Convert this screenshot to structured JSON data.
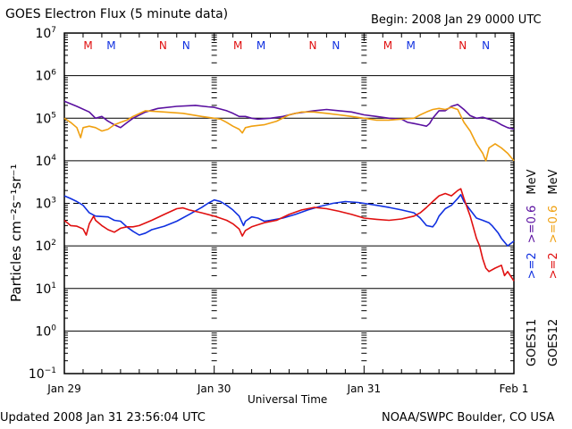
{
  "header": {
    "title": "GOES Electron Flux (5 minute data)",
    "begin": "Begin: 2008 Jan 29 0000 UTC"
  },
  "footer": {
    "updated": "Updated 2008 Jan 31 23:56:04 UTC",
    "credit": "NOAA/SWPC Boulder, CO USA"
  },
  "side_labels": {
    "goes11": "GOES11",
    "goes12": "GOES12",
    "g11_e2": ">=2",
    "g11_e06": ">=0.6",
    "g11_unit": "MeV",
    "g12_e2": ">=2",
    "g12_e06": ">=0.6",
    "g12_unit": "MeV"
  },
  "colors": {
    "g11_2mev": "#1030e0",
    "g11_06mev": "#5a10a0",
    "g12_2mev": "#e01010",
    "g12_06mev": "#f0a010",
    "m_n_red": "#e01010",
    "m_n_blue": "#1030e0"
  },
  "chart_data": {
    "type": "line",
    "title": "GOES Electron Flux (5 minute data)",
    "xlabel": "Universal Time",
    "ylabel": "Particles cm⁻²s⁻¹sr⁻¹",
    "yscale": "log",
    "ylim": [
      0.1,
      10000000
    ],
    "xlim_hours": [
      0,
      72
    ],
    "x_ticks": [
      {
        "hour": 0,
        "label": "Jan 29"
      },
      {
        "hour": 24,
        "label": "Jan 30"
      },
      {
        "hour": 48,
        "label": "Jan 31"
      },
      {
        "hour": 72,
        "label": "Feb 1"
      }
    ],
    "y_ticks": [
      {
        "exp": 7,
        "label": "10",
        "sup": "7"
      },
      {
        "exp": 6,
        "label": "10",
        "sup": "6"
      },
      {
        "exp": 5,
        "label": "10",
        "sup": "5"
      },
      {
        "exp": 4,
        "label": "10",
        "sup": "4"
      },
      {
        "exp": 3,
        "label": "10",
        "sup": "3"
      },
      {
        "exp": 2,
        "label": "10",
        "sup": "2"
      },
      {
        "exp": 1,
        "label": "10",
        "sup": "1"
      },
      {
        "exp": 0,
        "label": "10",
        "sup": "0"
      },
      {
        "exp": -1,
        "label": "10",
        "sup": "-1"
      }
    ],
    "threshold_line": {
      "value": 1000,
      "style": "dashed"
    },
    "solid_gridlines": [
      1000000,
      100000,
      10000,
      100,
      10,
      1
    ],
    "markers": [
      {
        "hour": 3.8,
        "label": "M",
        "color": "red"
      },
      {
        "hour": 7.5,
        "label": "M",
        "color": "blue"
      },
      {
        "hour": 15.8,
        "label": "N",
        "color": "red"
      },
      {
        "hour": 19.5,
        "label": "N",
        "color": "blue"
      },
      {
        "hour": 27.8,
        "label": "M",
        "color": "red"
      },
      {
        "hour": 31.5,
        "label": "M",
        "color": "blue"
      },
      {
        "hour": 39.8,
        "label": "N",
        "color": "red"
      },
      {
        "hour": 43.5,
        "label": "N",
        "color": "blue"
      },
      {
        "hour": 51.8,
        "label": "M",
        "color": "red"
      },
      {
        "hour": 55.5,
        "label": "M",
        "color": "blue"
      },
      {
        "hour": 63.8,
        "label": "N",
        "color": "red"
      },
      {
        "hour": 67.5,
        "label": "N",
        "color": "blue"
      }
    ],
    "series": [
      {
        "name": "GOES11 >=0.6 MeV",
        "color": "#5a10a0",
        "points": [
          [
            0,
            250000
          ],
          [
            2,
            190000
          ],
          [
            4,
            140000
          ],
          [
            5,
            100000
          ],
          [
            6,
            110000
          ],
          [
            7,
            85000
          ],
          [
            8,
            70000
          ],
          [
            9,
            60000
          ],
          [
            10,
            78000
          ],
          [
            11,
            100000
          ],
          [
            13,
            140000
          ],
          [
            15,
            170000
          ],
          [
            18,
            190000
          ],
          [
            21,
            200000
          ],
          [
            23,
            185000
          ],
          [
            24,
            180000
          ],
          [
            26,
            150000
          ],
          [
            27,
            130000
          ],
          [
            28,
            110000
          ],
          [
            29,
            110000
          ],
          [
            30,
            100000
          ],
          [
            31,
            95000
          ],
          [
            33,
            100000
          ],
          [
            35,
            110000
          ],
          [
            37,
            130000
          ],
          [
            40,
            150000
          ],
          [
            42,
            160000
          ],
          [
            44,
            150000
          ],
          [
            46,
            140000
          ],
          [
            48,
            120000
          ],
          [
            50,
            110000
          ],
          [
            52,
            100000
          ],
          [
            54,
            95000
          ],
          [
            55,
            80000
          ],
          [
            56,
            75000
          ],
          [
            57,
            70000
          ],
          [
            58,
            65000
          ],
          [
            58.5,
            75000
          ],
          [
            59,
            100000
          ],
          [
            60,
            150000
          ],
          [
            61,
            150000
          ],
          [
            62,
            190000
          ],
          [
            63,
            210000
          ],
          [
            64,
            160000
          ],
          [
            65,
            115000
          ],
          [
            66,
            100000
          ],
          [
            67,
            105000
          ],
          [
            68,
            95000
          ],
          [
            69,
            85000
          ],
          [
            70,
            70000
          ],
          [
            71,
            60000
          ],
          [
            72,
            55000
          ]
        ]
      },
      {
        "name": "GOES12 >=0.6 MeV",
        "color": "#f0a010",
        "points": [
          [
            0,
            100000
          ],
          [
            1,
            80000
          ],
          [
            2,
            60000
          ],
          [
            2.6,
            35000
          ],
          [
            3,
            60000
          ],
          [
            4,
            65000
          ],
          [
            5,
            60000
          ],
          [
            6,
            50000
          ],
          [
            7,
            55000
          ],
          [
            8,
            70000
          ],
          [
            9,
            80000
          ],
          [
            10,
            90000
          ],
          [
            11,
            110000
          ],
          [
            13,
            150000
          ],
          [
            16,
            140000
          ],
          [
            19,
            130000
          ],
          [
            22,
            110000
          ],
          [
            24,
            100000
          ],
          [
            25,
            95000
          ],
          [
            26,
            80000
          ],
          [
            27,
            65000
          ],
          [
            28,
            55000
          ],
          [
            28.5,
            45000
          ],
          [
            29,
            60000
          ],
          [
            30,
            65000
          ],
          [
            32,
            70000
          ],
          [
            34,
            85000
          ],
          [
            36,
            120000
          ],
          [
            38,
            140000
          ],
          [
            40,
            140000
          ],
          [
            42,
            130000
          ],
          [
            44,
            120000
          ],
          [
            46,
            110000
          ],
          [
            48,
            100000
          ],
          [
            50,
            90000
          ],
          [
            52,
            90000
          ],
          [
            54,
            95000
          ],
          [
            56,
            100000
          ],
          [
            57,
            120000
          ],
          [
            58,
            140000
          ],
          [
            59,
            160000
          ],
          [
            60,
            170000
          ],
          [
            61,
            160000
          ],
          [
            62,
            180000
          ],
          [
            63,
            160000
          ],
          [
            64,
            80000
          ],
          [
            65,
            50000
          ],
          [
            66,
            25000
          ],
          [
            67,
            15000
          ],
          [
            67.5,
            10000
          ],
          [
            68,
            20000
          ],
          [
            69,
            25000
          ],
          [
            70,
            20000
          ],
          [
            71,
            15000
          ],
          [
            72,
            10000
          ]
        ]
      },
      {
        "name": "GOES11 >=2 MeV",
        "color": "#1030e0",
        "points": [
          [
            0,
            1500
          ],
          [
            1,
            1300
          ],
          [
            2,
            1100
          ],
          [
            3,
            900
          ],
          [
            4,
            600
          ],
          [
            5,
            500
          ],
          [
            7,
            480
          ],
          [
            8,
            400
          ],
          [
            9,
            380
          ],
          [
            10,
            280
          ],
          [
            11,
            220
          ],
          [
            12,
            180
          ],
          [
            13,
            200
          ],
          [
            14,
            240
          ],
          [
            16,
            290
          ],
          [
            18,
            380
          ],
          [
            20,
            550
          ],
          [
            22,
            800
          ],
          [
            23,
            1000
          ],
          [
            24,
            1200
          ],
          [
            25,
            1100
          ],
          [
            26,
            900
          ],
          [
            27,
            700
          ],
          [
            28,
            500
          ],
          [
            28.7,
            300
          ],
          [
            29,
            380
          ],
          [
            30,
            480
          ],
          [
            31,
            450
          ],
          [
            32,
            380
          ],
          [
            33,
            400
          ],
          [
            35,
            450
          ],
          [
            37,
            550
          ],
          [
            39,
            700
          ],
          [
            41,
            850
          ],
          [
            43,
            1000
          ],
          [
            45,
            1100
          ],
          [
            47,
            1050
          ],
          [
            48,
            1000
          ],
          [
            50,
            900
          ],
          [
            52,
            800
          ],
          [
            54,
            700
          ],
          [
            56,
            600
          ],
          [
            57,
            450
          ],
          [
            58,
            300
          ],
          [
            59,
            280
          ],
          [
            59.5,
            350
          ],
          [
            60,
            500
          ],
          [
            61,
            750
          ],
          [
            62,
            900
          ],
          [
            63,
            1300
          ],
          [
            63.5,
            1600
          ],
          [
            64,
            1100
          ],
          [
            65,
            700
          ],
          [
            66,
            450
          ],
          [
            67,
            400
          ],
          [
            68,
            350
          ],
          [
            68.5,
            300
          ],
          [
            69.5,
            200
          ],
          [
            70,
            150
          ],
          [
            71,
            100
          ],
          [
            72,
            130
          ]
        ]
      },
      {
        "name": "GOES12 >=2 MeV",
        "color": "#e01010",
        "points": [
          [
            0,
            400
          ],
          [
            1,
            300
          ],
          [
            2,
            290
          ],
          [
            3,
            250
          ],
          [
            3.5,
            180
          ],
          [
            4,
            330
          ],
          [
            4.7,
            500
          ],
          [
            5,
            400
          ],
          [
            6,
            300
          ],
          [
            7,
            240
          ],
          [
            8,
            210
          ],
          [
            9,
            260
          ],
          [
            10,
            280
          ],
          [
            11,
            280
          ],
          [
            12,
            300
          ],
          [
            14,
            400
          ],
          [
            16,
            550
          ],
          [
            18,
            750
          ],
          [
            19,
            780
          ],
          [
            20,
            700
          ],
          [
            22,
            600
          ],
          [
            24,
            500
          ],
          [
            26,
            400
          ],
          [
            27,
            330
          ],
          [
            28,
            250
          ],
          [
            28.5,
            170
          ],
          [
            29,
            230
          ],
          [
            30,
            280
          ],
          [
            32,
            350
          ],
          [
            34,
            400
          ],
          [
            36,
            550
          ],
          [
            38,
            700
          ],
          [
            40,
            800
          ],
          [
            42,
            750
          ],
          [
            44,
            650
          ],
          [
            46,
            550
          ],
          [
            48,
            450
          ],
          [
            50,
            420
          ],
          [
            52,
            400
          ],
          [
            54,
            430
          ],
          [
            56,
            500
          ],
          [
            57,
            600
          ],
          [
            58,
            800
          ],
          [
            59,
            1100
          ],
          [
            60,
            1500
          ],
          [
            61,
            1700
          ],
          [
            62,
            1500
          ],
          [
            63,
            2000
          ],
          [
            63.5,
            2200
          ],
          [
            64,
            1300
          ],
          [
            65,
            500
          ],
          [
            66,
            150
          ],
          [
            66.5,
            100
          ],
          [
            67,
            50
          ],
          [
            67.5,
            30
          ],
          [
            68,
            25
          ],
          [
            69,
            30
          ],
          [
            70,
            35
          ],
          [
            70.5,
            20
          ],
          [
            71,
            25
          ],
          [
            72,
            15
          ]
        ]
      }
    ]
  }
}
